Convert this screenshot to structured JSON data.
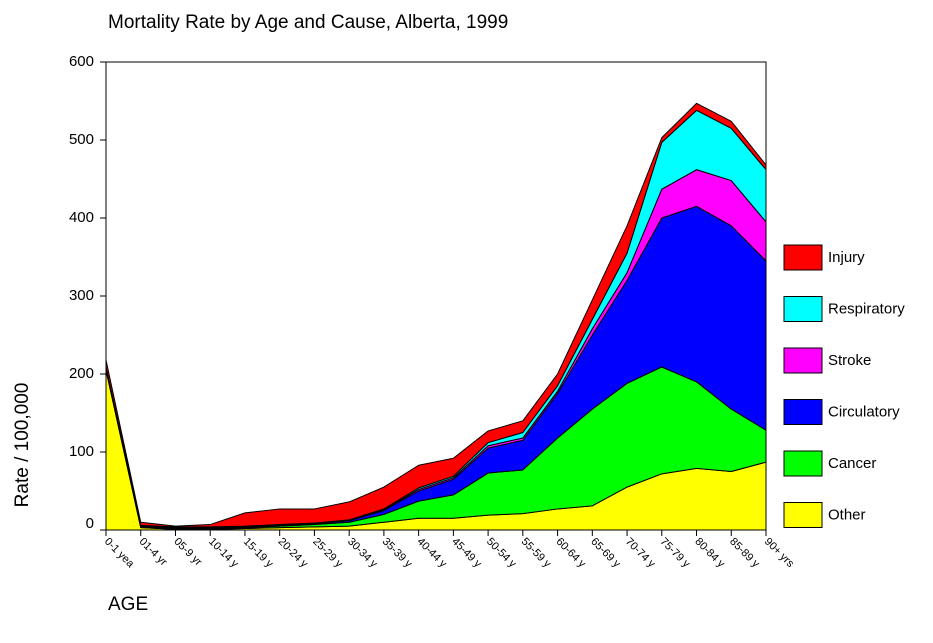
{
  "chart_data": {
    "type": "stacked-area",
    "title": "Mortality Rate by Age and Cause, Alberta, 1999",
    "ylabel": "Rate / 100,000",
    "xlabel": "AGE",
    "categories": [
      "0-1 yea",
      "01-4 yr",
      "05-9 yr",
      "10-14 y",
      "15-19 y",
      "20-24 y",
      "25-29 y",
      "30-34 y",
      "35-39 y",
      "40-44 y",
      "45-49 y",
      "50-54 y",
      "55-59 y",
      "60-64 y",
      "65-69 y",
      "70-74 y",
      "75-79 y",
      "80-84 y",
      "85-89 y",
      "90+ yrs"
    ],
    "series": [
      {
        "name": "Other",
        "color": "#ffff00",
        "values": [
          205,
          3,
          1,
          1,
          2,
          3,
          4,
          5,
          10,
          15,
          15,
          19,
          21,
          27,
          31,
          55,
          72,
          79,
          75,
          87
        ]
      },
      {
        "name": "Cancer",
        "color": "#00ff00",
        "values": [
          1,
          1,
          1,
          1,
          1,
          2,
          3,
          5,
          10,
          22,
          30,
          54,
          56,
          91,
          124,
          133,
          137,
          111,
          80,
          41
        ]
      },
      {
        "name": "Circulatory",
        "color": "#0000ff",
        "values": [
          1,
          1,
          1,
          1,
          1,
          1,
          1,
          2,
          5,
          13,
          20,
          32,
          38,
          57,
          95,
          132,
          191,
          225,
          235,
          217
        ]
      },
      {
        "name": "Stroke",
        "color": "#ff00ff",
        "values": [
          0,
          0,
          0,
          0,
          0,
          0,
          0,
          0,
          1,
          2,
          2,
          3,
          3,
          3,
          8,
          10,
          37,
          47,
          58,
          50
        ]
      },
      {
        "name": "Respiratory",
        "color": "#00ffff",
        "values": [
          2,
          1,
          1,
          1,
          1,
          1,
          1,
          1,
          1,
          2,
          2,
          4,
          7,
          7,
          12,
          25,
          60,
          76,
          67,
          67
        ]
      },
      {
        "name": "Injury",
        "color": "#ff0000",
        "values": [
          9,
          4,
          1,
          3,
          17,
          20,
          18,
          23,
          28,
          29,
          23,
          15,
          15,
          15,
          25,
          35,
          6,
          9,
          9,
          6
        ]
      }
    ],
    "ylim": [
      0,
      600
    ],
    "yticks": [
      0,
      100,
      200,
      300,
      400,
      500,
      600
    ],
    "legend": "right"
  }
}
